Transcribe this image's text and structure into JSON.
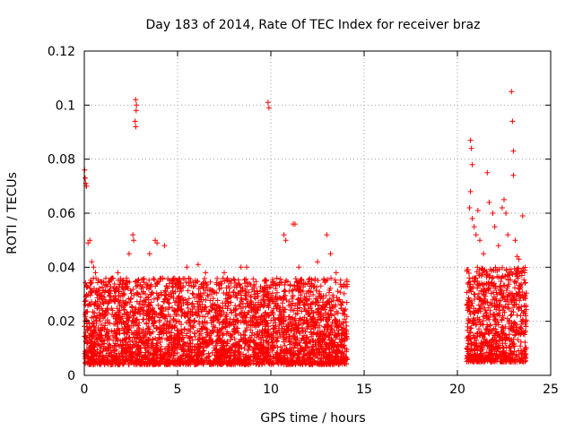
{
  "chart_data": {
    "type": "scatter",
    "title": "Day 183 of 2014, Rate Of TEC Index for receiver braz",
    "xlabel": "GPS time / hours",
    "ylabel": "ROTI / TECUs",
    "xlim": [
      0,
      25
    ],
    "ylim": [
      0,
      0.12
    ],
    "xticks": [
      0,
      5,
      10,
      15,
      20,
      25
    ],
    "xtick_labels": [
      "0",
      "5",
      "10",
      "15",
      "20",
      "25"
    ],
    "yticks": [
      0,
      0.02,
      0.04,
      0.06,
      0.08,
      0.1,
      0.12
    ],
    "ytick_labels": [
      "0",
      "0.02",
      "0.04",
      "0.06",
      "0.08",
      "0.1",
      "0.12"
    ],
    "grid": true,
    "marker": "plus",
    "series": [
      {
        "name": "ROTI",
        "color": "#ff0000",
        "segments": [
          {
            "t0": 0.0,
            "t1": 14.1,
            "min": 0.004,
            "max": 0.036
          },
          {
            "t0": 20.5,
            "t1": 23.7,
            "min": 0.005,
            "max": 0.04
          }
        ],
        "points": [
          [
            0.02,
            0.076
          ],
          [
            0.05,
            0.073
          ],
          [
            0.08,
            0.071
          ],
          [
            0.1,
            0.07
          ],
          [
            0.12,
            0.07
          ],
          [
            0.2,
            0.049
          ],
          [
            0.3,
            0.05
          ],
          [
            0.4,
            0.042
          ],
          [
            0.5,
            0.04
          ],
          [
            0.6,
            0.038
          ],
          [
            1.5,
            0.036
          ],
          [
            1.8,
            0.038
          ],
          [
            2.4,
            0.045
          ],
          [
            2.6,
            0.052
          ],
          [
            2.65,
            0.05
          ],
          [
            2.75,
            0.102
          ],
          [
            2.8,
            0.1
          ],
          [
            2.78,
            0.098
          ],
          [
            2.72,
            0.094
          ],
          [
            2.76,
            0.092
          ],
          [
            3.5,
            0.045
          ],
          [
            3.8,
            0.05
          ],
          [
            3.9,
            0.049
          ],
          [
            4.3,
            0.048
          ],
          [
            5.5,
            0.04
          ],
          [
            6.1,
            0.041
          ],
          [
            6.5,
            0.038
          ],
          [
            7.5,
            0.038
          ],
          [
            8.4,
            0.04
          ],
          [
            8.7,
            0.04
          ],
          [
            9.6,
            0.028
          ],
          [
            9.85,
            0.101
          ],
          [
            9.9,
            0.099
          ],
          [
            10.7,
            0.052
          ],
          [
            10.8,
            0.05
          ],
          [
            11.2,
            0.056
          ],
          [
            11.3,
            0.056
          ],
          [
            11.5,
            0.04
          ],
          [
            12.5,
            0.042
          ],
          [
            13.0,
            0.052
          ],
          [
            13.2,
            0.045
          ],
          [
            13.5,
            0.038
          ],
          [
            13.9,
            0.033
          ],
          [
            14.0,
            0.033
          ],
          [
            20.7,
            0.087
          ],
          [
            20.75,
            0.084
          ],
          [
            20.8,
            0.078
          ],
          [
            20.7,
            0.068
          ],
          [
            20.65,
            0.062
          ],
          [
            20.8,
            0.058
          ],
          [
            20.9,
            0.055
          ],
          [
            21.0,
            0.052
          ],
          [
            21.1,
            0.061
          ],
          [
            21.2,
            0.05
          ],
          [
            21.4,
            0.045
          ],
          [
            21.6,
            0.075
          ],
          [
            21.7,
            0.064
          ],
          [
            21.9,
            0.06
          ],
          [
            22.0,
            0.055
          ],
          [
            22.2,
            0.048
          ],
          [
            22.4,
            0.062
          ],
          [
            22.5,
            0.065
          ],
          [
            22.6,
            0.06
          ],
          [
            22.7,
            0.052
          ],
          [
            22.9,
            0.105
          ],
          [
            22.95,
            0.094
          ],
          [
            23.0,
            0.083
          ],
          [
            23.0,
            0.074
          ],
          [
            23.1,
            0.05
          ],
          [
            23.2,
            0.044
          ],
          [
            23.3,
            0.043
          ],
          [
            23.5,
            0.059
          ],
          [
            23.6,
            0.038
          ]
        ]
      }
    ]
  }
}
